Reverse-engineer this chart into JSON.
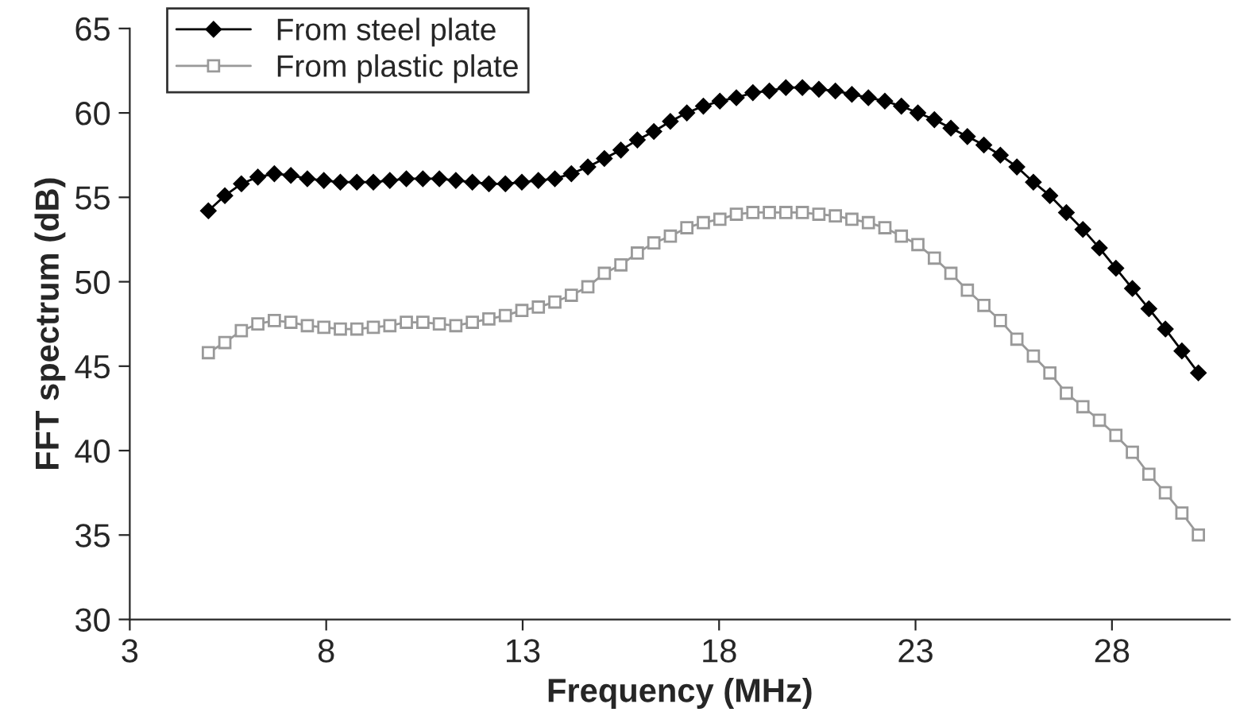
{
  "chart_data": {
    "type": "line",
    "xlabel": "Frequency (MHz)",
    "ylabel": "FFT spectrum (dB)",
    "xlim": [
      3,
      31
    ],
    "xticks": [
      3,
      8,
      13,
      18,
      23,
      28
    ],
    "ylim": [
      30,
      65
    ],
    "yticks": [
      30,
      35,
      40,
      45,
      50,
      55,
      60,
      65
    ],
    "grid": false,
    "legend": "top left",
    "x": [
      5,
      5.42,
      5.84,
      6.26,
      6.68,
      7.1,
      7.52,
      7.94,
      8.36,
      8.78,
      9.2,
      9.62,
      10.04,
      10.46,
      10.88,
      11.3,
      11.72,
      12.14,
      12.56,
      12.98,
      13.4,
      13.82,
      14.24,
      14.66,
      15.08,
      15.5,
      15.92,
      16.34,
      16.76,
      17.18,
      17.6,
      18.02,
      18.44,
      18.86,
      19.28,
      19.7,
      20.12,
      20.54,
      20.96,
      21.38,
      21.8,
      22.22,
      22.64,
      23.06,
      23.48,
      23.9,
      24.32,
      24.74,
      25.16,
      25.58,
      26.0,
      26.42,
      26.84,
      27.26,
      27.68,
      28.1,
      28.52,
      28.94,
      29.36,
      29.78,
      30.2
    ],
    "series": [
      {
        "name": "From steel plate",
        "color": "#000000",
        "marker": "diamond",
        "values": [
          54.2,
          55.1,
          55.8,
          56.2,
          56.4,
          56.3,
          56.1,
          56.0,
          55.9,
          55.9,
          55.9,
          56.0,
          56.1,
          56.1,
          56.1,
          56.0,
          55.9,
          55.8,
          55.8,
          55.9,
          56.0,
          56.1,
          56.4,
          56.8,
          57.3,
          57.8,
          58.4,
          58.9,
          59.5,
          60.0,
          60.4,
          60.7,
          60.9,
          61.2,
          61.3,
          61.5,
          61.5,
          61.4,
          61.3,
          61.1,
          60.9,
          60.7,
          60.4,
          60.0,
          59.6,
          59.1,
          58.6,
          58.1,
          57.5,
          56.8,
          55.9,
          55.1,
          54.1,
          53.1,
          52.0,
          50.8,
          49.6,
          48.4,
          47.2,
          45.9,
          44.6
        ]
      },
      {
        "name": "From plastic plate",
        "color": "#999999",
        "marker": "square",
        "values": [
          45.8,
          46.4,
          47.1,
          47.5,
          47.7,
          47.6,
          47.4,
          47.3,
          47.2,
          47.2,
          47.3,
          47.4,
          47.6,
          47.6,
          47.5,
          47.4,
          47.6,
          47.8,
          48.0,
          48.3,
          48.5,
          48.8,
          49.2,
          49.7,
          50.5,
          51.0,
          51.7,
          52.3,
          52.7,
          53.2,
          53.5,
          53.7,
          54.0,
          54.1,
          54.1,
          54.1,
          54.1,
          54.0,
          53.9,
          53.7,
          53.5,
          53.2,
          52.7,
          52.2,
          51.4,
          50.5,
          49.5,
          48.6,
          47.7,
          46.6,
          45.6,
          44.6,
          43.4,
          42.6,
          41.8,
          40.9,
          39.9,
          38.6,
          37.5,
          36.3,
          35.0
        ]
      }
    ]
  }
}
